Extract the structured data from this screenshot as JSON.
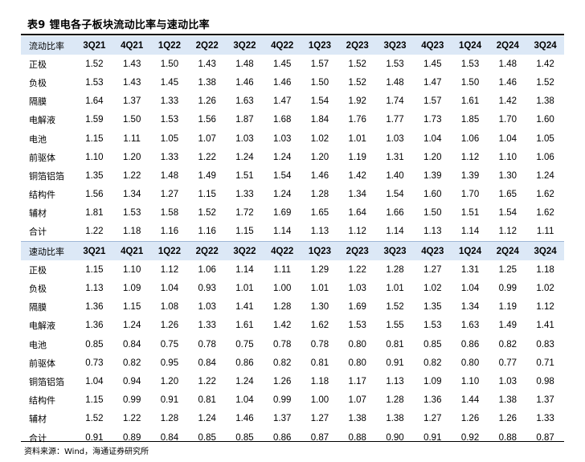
{
  "title": "表9  锂电各子板块流动比率与速动比率",
  "periods": [
    "3Q21",
    "4Q21",
    "1Q22",
    "2Q22",
    "3Q22",
    "4Q22",
    "1Q23",
    "2Q23",
    "3Q23",
    "4Q23",
    "1Q24",
    "2Q24",
    "3Q24"
  ],
  "sections": [
    {
      "header": "流动比率",
      "rows": [
        {
          "label": "正极",
          "values": [
            "1.52",
            "1.43",
            "1.50",
            "1.43",
            "1.48",
            "1.45",
            "1.57",
            "1.52",
            "1.53",
            "1.45",
            "1.53",
            "1.48",
            "1.42"
          ]
        },
        {
          "label": "负极",
          "values": [
            "1.53",
            "1.43",
            "1.45",
            "1.38",
            "1.46",
            "1.46",
            "1.50",
            "1.52",
            "1.48",
            "1.47",
            "1.50",
            "1.46",
            "1.52"
          ]
        },
        {
          "label": "隔膜",
          "values": [
            "1.64",
            "1.37",
            "1.33",
            "1.26",
            "1.63",
            "1.47",
            "1.54",
            "1.92",
            "1.74",
            "1.57",
            "1.61",
            "1.42",
            "1.38"
          ]
        },
        {
          "label": "电解液",
          "values": [
            "1.59",
            "1.50",
            "1.53",
            "1.56",
            "1.87",
            "1.68",
            "1.84",
            "1.76",
            "1.77",
            "1.73",
            "1.85",
            "1.70",
            "1.60"
          ]
        },
        {
          "label": "电池",
          "values": [
            "1.15",
            "1.11",
            "1.05",
            "1.07",
            "1.03",
            "1.03",
            "1.02",
            "1.01",
            "1.03",
            "1.04",
            "1.06",
            "1.04",
            "1.05"
          ]
        },
        {
          "label": "前驱体",
          "values": [
            "1.10",
            "1.20",
            "1.33",
            "1.22",
            "1.24",
            "1.24",
            "1.20",
            "1.19",
            "1.31",
            "1.20",
            "1.12",
            "1.10",
            "1.06"
          ]
        },
        {
          "label": "铜箔铝箔",
          "values": [
            "1.35",
            "1.22",
            "1.48",
            "1.49",
            "1.51",
            "1.54",
            "1.46",
            "1.42",
            "1.40",
            "1.39",
            "1.39",
            "1.30",
            "1.24"
          ]
        },
        {
          "label": "结构件",
          "values": [
            "1.56",
            "1.34",
            "1.27",
            "1.15",
            "1.33",
            "1.24",
            "1.28",
            "1.34",
            "1.54",
            "1.60",
            "1.70",
            "1.65",
            "1.62"
          ]
        },
        {
          "label": "辅材",
          "values": [
            "1.81",
            "1.53",
            "1.58",
            "1.52",
            "1.72",
            "1.69",
            "1.65",
            "1.64",
            "1.66",
            "1.50",
            "1.51",
            "1.54",
            "1.62"
          ]
        },
        {
          "label": "合计",
          "values": [
            "1.22",
            "1.18",
            "1.16",
            "1.16",
            "1.15",
            "1.14",
            "1.13",
            "1.12",
            "1.14",
            "1.13",
            "1.14",
            "1.12",
            "1.11"
          ]
        }
      ]
    },
    {
      "header": "速动比率",
      "rows": [
        {
          "label": "正极",
          "values": [
            "1.15",
            "1.10",
            "1.12",
            "1.06",
            "1.14",
            "1.11",
            "1.29",
            "1.22",
            "1.28",
            "1.27",
            "1.31",
            "1.25",
            "1.18"
          ]
        },
        {
          "label": "负极",
          "values": [
            "1.13",
            "1.09",
            "1.04",
            "0.93",
            "1.01",
            "1.00",
            "1.01",
            "1.03",
            "1.01",
            "1.02",
            "1.04",
            "0.99",
            "1.02"
          ]
        },
        {
          "label": "隔膜",
          "values": [
            "1.36",
            "1.15",
            "1.08",
            "1.03",
            "1.41",
            "1.28",
            "1.30",
            "1.69",
            "1.52",
            "1.35",
            "1.34",
            "1.19",
            "1.12"
          ]
        },
        {
          "label": "电解液",
          "values": [
            "1.36",
            "1.24",
            "1.26",
            "1.33",
            "1.61",
            "1.42",
            "1.62",
            "1.53",
            "1.55",
            "1.53",
            "1.63",
            "1.49",
            "1.41"
          ]
        },
        {
          "label": "电池",
          "values": [
            "0.85",
            "0.84",
            "0.75",
            "0.78",
            "0.75",
            "0.78",
            "0.78",
            "0.80",
            "0.81",
            "0.85",
            "0.86",
            "0.82",
            "0.83"
          ]
        },
        {
          "label": "前驱体",
          "values": [
            "0.73",
            "0.82",
            "0.95",
            "0.84",
            "0.86",
            "0.82",
            "0.81",
            "0.80",
            "0.91",
            "0.82",
            "0.80",
            "0.77",
            "0.71"
          ]
        },
        {
          "label": "铜箔铝箔",
          "values": [
            "1.04",
            "0.94",
            "1.20",
            "1.22",
            "1.24",
            "1.26",
            "1.18",
            "1.17",
            "1.13",
            "1.09",
            "1.10",
            "1.03",
            "0.98"
          ]
        },
        {
          "label": "结构件",
          "values": [
            "1.15",
            "0.99",
            "0.91",
            "0.81",
            "1.04",
            "0.99",
            "1.00",
            "1.07",
            "1.28",
            "1.36",
            "1.44",
            "1.38",
            "1.37"
          ]
        },
        {
          "label": "辅材",
          "values": [
            "1.52",
            "1.22",
            "1.28",
            "1.24",
            "1.46",
            "1.37",
            "1.27",
            "1.38",
            "1.38",
            "1.27",
            "1.26",
            "1.26",
            "1.33"
          ]
        },
        {
          "label": "合计",
          "values": [
            "0.91",
            "0.89",
            "0.84",
            "0.85",
            "0.85",
            "0.86",
            "0.87",
            "0.88",
            "0.90",
            "0.91",
            "0.92",
            "0.88",
            "0.87"
          ]
        }
      ]
    }
  ],
  "source": "资料来源：Wind，海通证券研究所",
  "colors": {
    "header_bg": "#dce8f6",
    "rule": "#000000"
  }
}
